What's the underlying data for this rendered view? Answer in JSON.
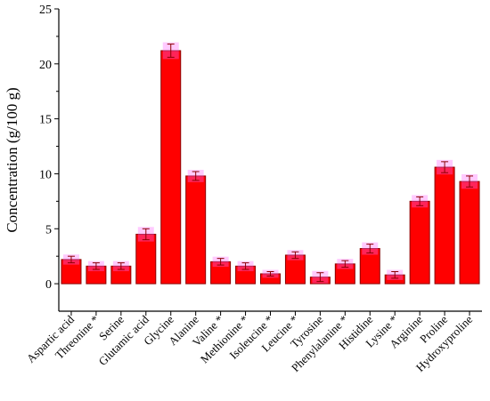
{
  "chart_data": {
    "type": "bar",
    "title": "",
    "xlabel": "",
    "ylabel": "Concentration (g/100 g)",
    "ylim": [
      -2.5,
      25
    ],
    "yticks": [
      0,
      5,
      10,
      15,
      20,
      25
    ],
    "grid": false,
    "categories": [
      "Aspartic acid",
      "Threonine *",
      "Serine",
      "Glutamic acid",
      "Glycine",
      "Alanine",
      "Valine *",
      "Methionine *",
      "Isoleucine *",
      "Leucine *",
      "Tyrosine",
      "Phenylalanine *",
      "Histidine",
      "Lysine *",
      "Arginine",
      "Proline",
      "Hydroxyproline"
    ],
    "values": [
      2.2,
      1.6,
      1.6,
      4.5,
      21.2,
      9.8,
      2.0,
      1.6,
      0.9,
      2.6,
      0.6,
      1.8,
      3.2,
      0.8,
      7.5,
      10.6,
      9.3
    ],
    "errors": [
      0.3,
      0.3,
      0.3,
      0.5,
      0.6,
      0.4,
      0.3,
      0.3,
      0.2,
      0.3,
      0.4,
      0.3,
      0.4,
      0.3,
      0.4,
      0.5,
      0.5
    ],
    "colors": {
      "bar": "#ff0000",
      "bar_edge": "#8b0000",
      "error_glow": "#ff66ff",
      "axis": "#000000"
    }
  }
}
